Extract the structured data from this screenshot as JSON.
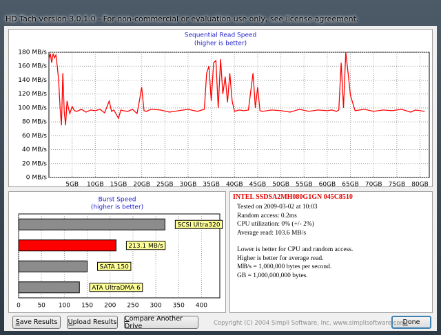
{
  "window": {
    "title": "HD Tach version 3.0.1.0  - For non-commercial or evaluation use only, see license agreement."
  },
  "chart_data": [
    {
      "type": "line",
      "title": "Sequential Read Speed",
      "subtitle": "(higher is better)",
      "x": [
        0,
        0.3,
        0.6,
        0.9,
        1.2,
        1.5,
        1.8,
        2.1,
        2.4,
        2.7,
        3,
        3.3,
        3.6,
        3.9,
        4.2,
        4.5,
        5,
        5.5,
        6,
        7,
        8,
        9,
        10,
        11,
        12,
        13,
        13.5,
        14,
        15,
        15.5,
        16,
        17,
        18,
        19,
        19.5,
        20,
        20.5,
        21,
        22,
        24,
        26,
        28,
        30,
        32,
        33.5,
        34,
        34.5,
        35,
        35.5,
        36,
        36.5,
        37,
        37.5,
        38,
        38.5,
        39,
        39.5,
        40,
        41,
        42,
        43,
        44,
        44.5,
        45,
        45.5,
        46,
        48,
        50,
        52,
        54,
        56,
        58,
        60,
        61,
        62,
        62.5,
        63,
        63.5,
        64,
        64.5,
        65,
        66,
        68,
        70,
        72,
        74,
        76,
        78,
        79,
        80,
        81
      ],
      "series": [
        {
          "color": "#ff0000",
          "values": [
            170,
            178,
            165,
            178,
            172,
            176,
            160,
            140,
            100,
            75,
            150,
            95,
            75,
            110,
            100,
            92,
            102,
            96,
            95,
            98,
            94,
            97,
            96,
            98,
            93,
            110,
            95,
            97,
            85,
            97,
            96,
            95,
            98,
            92,
            110,
            130,
            96,
            95,
            98,
            97,
            94,
            96,
            98,
            95,
            98,
            150,
            160,
            110,
            165,
            168,
            100,
            170,
            120,
            145,
            108,
            150,
            110,
            95,
            97,
            96,
            97,
            150,
            100,
            130,
            96,
            95,
            97,
            96,
            94,
            98,
            95,
            97,
            96,
            97,
            95,
            97,
            165,
            100,
            180,
            150,
            118,
            96,
            98,
            95,
            97,
            96,
            98,
            94,
            97,
            96,
            95
          ]
        }
      ],
      "xlim": [
        0,
        82
      ],
      "ylim": [
        0,
        180
      ],
      "xticks": [
        {
          "value": 5,
          "label": "5GB"
        },
        {
          "value": 10,
          "label": "10GB"
        },
        {
          "value": 15,
          "label": "15GB"
        },
        {
          "value": 20,
          "label": "20GB"
        },
        {
          "value": 25,
          "label": "25GB"
        },
        {
          "value": 30,
          "label": "30GB"
        },
        {
          "value": 35,
          "label": "35GB"
        },
        {
          "value": 40,
          "label": "40GB"
        },
        {
          "value": 45,
          "label": "45GB"
        },
        {
          "value": 50,
          "label": "50GB"
        },
        {
          "value": 55,
          "label": "55GB"
        },
        {
          "value": 60,
          "label": "60GB"
        },
        {
          "value": 65,
          "label": "65GB"
        },
        {
          "value": 70,
          "label": "70GB"
        },
        {
          "value": 75,
          "label": "75GB"
        },
        {
          "value": 80,
          "label": "80GB"
        }
      ],
      "yticks": [
        {
          "value": 0,
          "label": "0 MB/s"
        },
        {
          "value": 20,
          "label": "20 MB/s"
        },
        {
          "value": 40,
          "label": "40 MB/s"
        },
        {
          "value": 60,
          "label": "60 MB/s"
        },
        {
          "value": 80,
          "label": "80 MB/s"
        },
        {
          "value": 100,
          "label": "100 MB/s"
        },
        {
          "value": 120,
          "label": "120 MB/s"
        },
        {
          "value": 140,
          "label": "140 MB/s"
        },
        {
          "value": 160,
          "label": "160 MB/s"
        },
        {
          "value": 180,
          "label": "180 MB/s"
        }
      ],
      "grid": true
    },
    {
      "type": "hbar",
      "title": "Burst Speed",
      "subtitle": "(higher is better)",
      "categories": [
        "SCSI Ultra320",
        null,
        "SATA 150",
        "ATA UltraDMA 6"
      ],
      "values": [
        320,
        213.1,
        150,
        133
      ],
      "value_labels": [
        null,
        "213.1 MB/s",
        null,
        null
      ],
      "colors": [
        "#8c8c8c",
        "#ff0000",
        "#8c8c8c",
        "#8c8c8c"
      ],
      "xlim": [
        0,
        440
      ],
      "xticks": [
        0,
        50,
        100,
        150,
        200,
        250,
        300,
        350,
        400
      ],
      "grid": true
    }
  ],
  "drive_info": {
    "name": "INTEL SSDSA2MH080G1GN 045C8510",
    "details": [
      "Tested on 2009-03-02 at 10:03",
      "Random access: 0.2ms",
      "CPU utilization: 0% (+/- 2%)",
      "Average read: 103.6 MB/s"
    ],
    "notes": [
      "Lower is better for CPU and random access.",
      "Higher is better for average read.",
      "MB/s = 1,000,000 bytes per second.",
      "GB = 1,000,000,000 bytes."
    ]
  },
  "buttons": [
    "Save Results",
    "Upload Results",
    "Compare Another Drive",
    "Done"
  ],
  "copyright": "Copyright (C) 2004 Simpli Software, Inc. www.simplisoftware.com"
}
